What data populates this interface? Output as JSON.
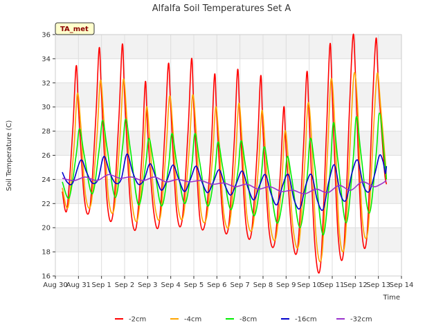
{
  "chart_data": {
    "type": "line",
    "title": "Alfalfa Soil Temperatures Set A",
    "xlabel": "Time",
    "ylabel": "Soil Temperature (C)",
    "site_label": "TA_met",
    "ylim": [
      16,
      36
    ],
    "y_ticks": [
      16,
      18,
      20,
      22,
      24,
      26,
      28,
      30,
      32,
      34,
      36
    ],
    "xlim": [
      0,
      15
    ],
    "x_ticks": [
      0,
      1,
      2,
      3,
      4,
      5,
      6,
      7,
      8,
      9,
      10,
      11,
      12,
      13,
      14,
      15
    ],
    "x_tick_labels": [
      "Aug 30",
      "Aug 31",
      "Sep 1",
      "Sep 2",
      "Sep 3",
      "Sep 4",
      "Sep 5",
      "Sep 6",
      "Sep 7",
      "Sep 8",
      "Sep 9",
      "Sep 10",
      "Sep 11",
      "Sep 12",
      "Sep 13",
      "Sep 14"
    ],
    "grid": true,
    "legend_position": "bottom",
    "colors": {
      "-2cm": "#ff0000",
      "-4cm": "#ffa500",
      "-8cm": "#00ee00",
      "-16cm": "#0000cc",
      "-32cm": "#9932cc"
    },
    "series": [
      {
        "name": "-2cm",
        "x": [
          0.3,
          0.5,
          0.75,
          0.9,
          1.0,
          1.25,
          1.5,
          1.75,
          1.9,
          2.0,
          2.25,
          2.5,
          2.75,
          2.9,
          3.0,
          3.25,
          3.5,
          3.75,
          3.9,
          4.0,
          4.25,
          4.5,
          4.75,
          4.9,
          5.0,
          5.25,
          5.5,
          5.75,
          5.9,
          6.0,
          6.25,
          6.5,
          6.75,
          6.9,
          7.0,
          7.25,
          7.5,
          7.75,
          7.9,
          8.0,
          8.25,
          8.5,
          8.75,
          8.9,
          9.0,
          9.25,
          9.5,
          9.75,
          9.9,
          10.0,
          10.25,
          10.5,
          10.75,
          10.9,
          11.0,
          11.25,
          11.5,
          11.75,
          11.9,
          12.0,
          12.25,
          12.5,
          12.75,
          12.9,
          13.0,
          13.25,
          13.5,
          13.75,
          13.9,
          14.0,
          14.25,
          14.35
        ],
        "y": [
          23.0,
          21.5,
          28.0,
          33.4,
          30.0,
          22.5,
          21.7,
          29.0,
          34.9,
          31.0,
          22.0,
          21.2,
          29.0,
          35.2,
          31.0,
          22.0,
          20.0,
          26.0,
          32.1,
          28.0,
          21.5,
          20.4,
          28.0,
          33.6,
          30.0,
          21.5,
          20.7,
          28.0,
          34.0,
          30.0,
          21.0,
          20.5,
          26.5,
          32.7,
          29.0,
          21.0,
          20.0,
          27.0,
          33.1,
          29.0,
          20.5,
          19.6,
          26.5,
          32.6,
          28.0,
          20.0,
          18.7,
          24.5,
          30.0,
          26.5,
          19.5,
          18.3,
          26.5,
          32.9,
          29.0,
          18.5,
          17.0,
          28.0,
          35.2,
          31.0,
          19.5,
          18.2,
          30.0,
          35.9,
          33.0,
          20.5,
          19.2,
          30.5,
          35.7,
          32.0,
          25.0,
          23.6
        ]
      },
      {
        "name": "-4cm",
        "x": [
          0.3,
          0.55,
          0.8,
          0.95,
          1.1,
          1.3,
          1.55,
          1.8,
          1.95,
          2.1,
          2.3,
          2.55,
          2.8,
          2.95,
          3.1,
          3.3,
          3.55,
          3.8,
          3.95,
          4.1,
          4.3,
          4.55,
          4.8,
          4.95,
          5.1,
          5.3,
          5.55,
          5.8,
          5.95,
          6.1,
          6.3,
          6.55,
          6.8,
          6.95,
          7.1,
          7.3,
          7.55,
          7.8,
          7.95,
          8.1,
          8.3,
          8.55,
          8.8,
          8.95,
          9.1,
          9.3,
          9.55,
          9.8,
          9.95,
          10.1,
          10.3,
          10.55,
          10.8,
          10.95,
          11.1,
          11.3,
          11.55,
          11.8,
          11.95,
          12.1,
          12.3,
          12.55,
          12.8,
          12.95,
          13.1,
          13.3,
          13.55,
          13.8,
          13.95,
          14.1,
          14.3,
          14.35
        ],
        "y": [
          23.3,
          21.7,
          26.5,
          31.1,
          28.5,
          22.8,
          22.0,
          27.5,
          32.2,
          29.0,
          22.5,
          21.6,
          27.5,
          32.3,
          29.0,
          22.5,
          20.6,
          25.0,
          30.0,
          27.0,
          22.0,
          20.9,
          26.5,
          30.9,
          28.0,
          22.0,
          21.0,
          26.5,
          31.0,
          28.0,
          21.5,
          20.8,
          25.5,
          30.0,
          27.0,
          21.2,
          20.3,
          25.5,
          30.3,
          27.0,
          21.0,
          20.0,
          25.0,
          29.7,
          26.5,
          20.5,
          19.1,
          23.5,
          28.0,
          25.5,
          20.0,
          18.6,
          25.0,
          30.3,
          27.5,
          19.2,
          17.7,
          26.5,
          32.3,
          29.0,
          19.8,
          18.7,
          28.0,
          32.8,
          30.0,
          20.8,
          19.8,
          28.5,
          32.8,
          30.0,
          25.5,
          24.0
        ]
      },
      {
        "name": "-8cm",
        "x": [
          0.3,
          0.6,
          0.9,
          1.05,
          1.25,
          1.6,
          1.9,
          2.05,
          2.25,
          2.6,
          2.9,
          3.05,
          3.25,
          3.6,
          3.9,
          4.05,
          4.25,
          4.6,
          4.9,
          5.05,
          5.25,
          5.6,
          5.9,
          6.05,
          6.25,
          6.6,
          6.9,
          7.05,
          7.25,
          7.6,
          7.9,
          8.05,
          8.25,
          8.6,
          8.9,
          9.05,
          9.25,
          9.6,
          9.9,
          10.05,
          10.25,
          10.6,
          10.9,
          11.05,
          11.25,
          11.6,
          11.9,
          12.05,
          12.25,
          12.6,
          12.9,
          13.05,
          13.25,
          13.6,
          13.9,
          14.05,
          14.25,
          14.35
        ],
        "y": [
          23.8,
          22.5,
          26.0,
          28.2,
          26.0,
          22.8,
          26.5,
          28.9,
          26.5,
          22.5,
          26.5,
          29.0,
          26.5,
          21.9,
          25.0,
          27.4,
          25.5,
          21.8,
          25.0,
          27.8,
          25.5,
          22.0,
          25.0,
          27.8,
          25.5,
          21.8,
          24.5,
          27.1,
          25.0,
          21.5,
          24.5,
          27.2,
          25.0,
          21.0,
          24.0,
          26.7,
          24.5,
          20.4,
          23.0,
          25.9,
          24.0,
          20.0,
          24.0,
          27.4,
          25.0,
          19.4,
          24.5,
          28.7,
          25.5,
          20.4,
          25.5,
          29.2,
          26.0,
          21.2,
          26.0,
          29.5,
          26.0,
          24.0
        ]
      },
      {
        "name": "-16cm",
        "x": [
          0.3,
          0.5,
          0.75,
          1.1,
          1.35,
          1.6,
          1.85,
          2.1,
          2.35,
          2.6,
          2.85,
          3.1,
          3.35,
          3.6,
          3.85,
          4.1,
          4.35,
          4.6,
          4.85,
          5.1,
          5.35,
          5.6,
          5.85,
          6.1,
          6.35,
          6.6,
          6.85,
          7.1,
          7.35,
          7.6,
          7.85,
          8.1,
          8.35,
          8.6,
          8.85,
          9.1,
          9.35,
          9.6,
          9.85,
          10.1,
          10.35,
          10.6,
          10.85,
          11.1,
          11.35,
          11.6,
          11.85,
          12.1,
          12.35,
          12.6,
          12.85,
          13.1,
          13.35,
          13.6,
          13.85,
          14.05,
          14.2,
          14.3,
          14.35
        ],
        "y": [
          24.6,
          23.8,
          23.7,
          25.6,
          24.6,
          23.7,
          24.0,
          25.9,
          24.6,
          23.7,
          24.0,
          26.1,
          24.6,
          23.6,
          24.0,
          25.3,
          24.2,
          23.1,
          24.0,
          25.2,
          24.0,
          23.0,
          24.0,
          25.1,
          23.8,
          22.9,
          23.8,
          24.8,
          23.5,
          22.7,
          23.7,
          24.7,
          23.3,
          22.3,
          23.5,
          24.4,
          22.8,
          21.9,
          23.5,
          24.4,
          22.3,
          21.6,
          23.5,
          24.4,
          22.3,
          21.5,
          23.8,
          25.2,
          22.8,
          22.3,
          24.5,
          25.6,
          23.5,
          23.0,
          24.5,
          26.0,
          25.5,
          24.5,
          25.1
        ]
      },
      {
        "name": "-32cm",
        "x": [
          0.3,
          0.8,
          1.3,
          1.8,
          2.3,
          2.8,
          3.3,
          3.8,
          4.3,
          4.8,
          5.3,
          5.8,
          6.3,
          6.8,
          7.3,
          7.8,
          8.3,
          8.8,
          9.3,
          9.8,
          10.3,
          10.8,
          11.3,
          11.8,
          12.3,
          12.8,
          13.3,
          13.8,
          14.1,
          14.35
        ],
        "y": [
          24.1,
          23.9,
          24.2,
          23.9,
          24.4,
          24.1,
          24.2,
          23.9,
          24.2,
          23.8,
          24.0,
          23.8,
          23.9,
          23.6,
          23.7,
          23.4,
          23.6,
          23.2,
          23.4,
          23.0,
          23.1,
          22.8,
          23.2,
          22.9,
          23.5,
          23.1,
          23.8,
          23.4,
          23.6,
          23.9
        ]
      }
    ]
  }
}
